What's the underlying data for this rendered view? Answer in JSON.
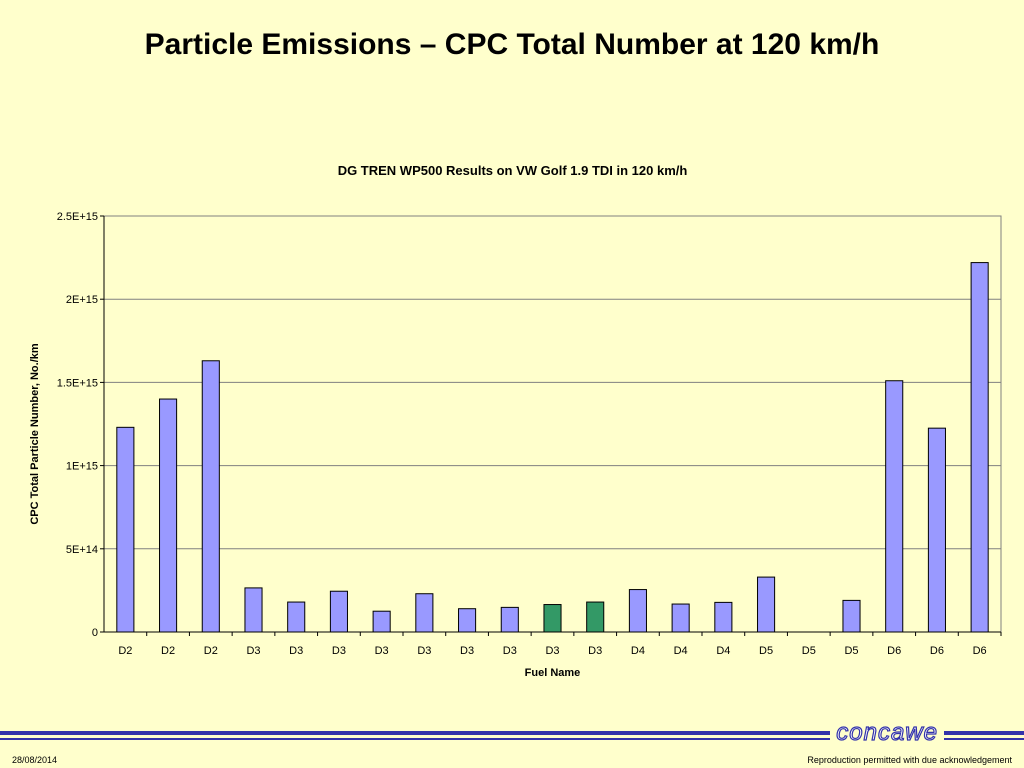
{
  "slide": {
    "title": "Particle Emissions – CPC Total Number at 120 km/h",
    "date": "28/08/2014",
    "note": "Reproduction permitted with due acknowledgement",
    "logo": "concawe"
  },
  "chart_data": {
    "type": "bar",
    "title": "DG TREN WP500 Results on VW Golf 1.9 TDI in 120 km/h",
    "xlabel": "Fuel Name",
    "ylabel": "CPC Total Particle Number, No./km",
    "ylim": [
      0,
      2500000000000000
    ],
    "yticks": [
      {
        "value": 0,
        "label": "0"
      },
      {
        "value": 500000000000000,
        "label": "5E+14"
      },
      {
        "value": 1000000000000000,
        "label": "1E+15"
      },
      {
        "value": 1500000000000000,
        "label": "1.5E+15"
      },
      {
        "value": 2000000000000000,
        "label": "2E+15"
      },
      {
        "value": 2500000000000000,
        "label": "2.5E+15"
      }
    ],
    "grid": true,
    "categories": [
      "D2",
      "D2",
      "D2",
      "D3",
      "D3",
      "D3",
      "D3",
      "D3",
      "D3",
      "D3",
      "D3",
      "D3",
      "D4",
      "D4",
      "D4",
      "D5",
      "D5",
      "D5",
      "D6",
      "D6",
      "D6"
    ],
    "values": [
      1230000000000000,
      1400000000000000,
      1630000000000000,
      265000000000000,
      180000000000000,
      245000000000000,
      125000000000000,
      230000000000000,
      140000000000000,
      148000000000000,
      165000000000000,
      180000000000000,
      255000000000000,
      168000000000000,
      178000000000000,
      330000000000000,
      0,
      190000000000000,
      1510000000000000,
      1225000000000000,
      2220000000000000
    ],
    "bar_colors": [
      "#9999ff",
      "#9999ff",
      "#9999ff",
      "#9999ff",
      "#9999ff",
      "#9999ff",
      "#9999ff",
      "#9999ff",
      "#9999ff",
      "#9999ff",
      "#339966",
      "#339966",
      "#9999ff",
      "#9999ff",
      "#9999ff",
      "#9999ff",
      "#9999ff",
      "#9999ff",
      "#9999ff",
      "#9999ff",
      "#9999ff"
    ]
  }
}
